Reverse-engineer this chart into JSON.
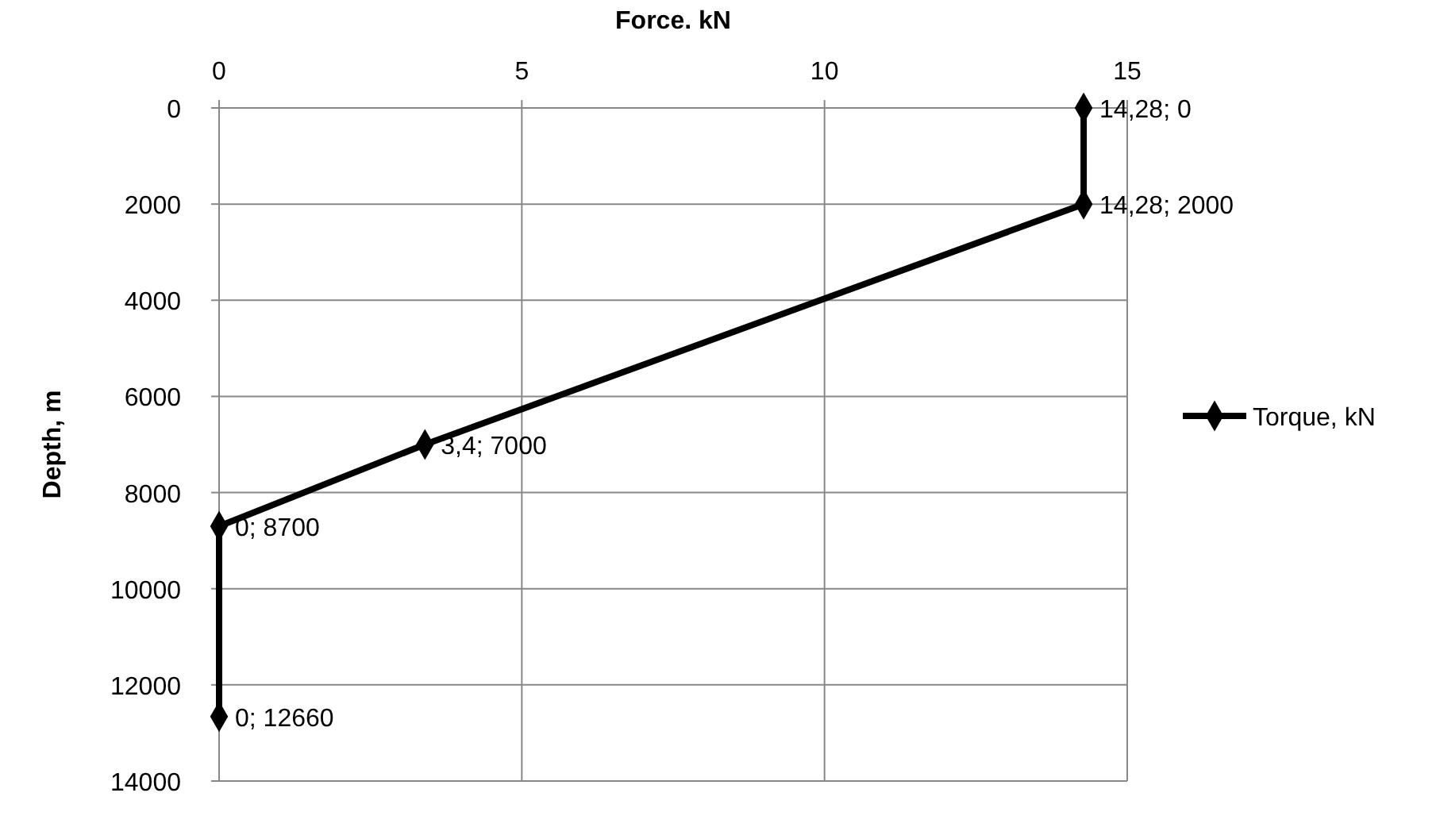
{
  "chart_data": {
    "type": "line",
    "xlabel": "Force. kN",
    "ylabel": "Depth, m",
    "x": [
      14.28,
      14.28,
      3.4,
      0,
      0
    ],
    "series": [
      {
        "name": "Torque, kN",
        "color": "#000000",
        "values": [
          0,
          2000,
          7000,
          8700,
          12660
        ],
        "value_labels": [
          "14,28; 0",
          "14,28; 2000",
          "3,4; 7000",
          "0; 8700",
          "0; 12660"
        ]
      }
    ],
    "xlim": [
      0,
      15
    ],
    "xticks": [
      0,
      5,
      10,
      15
    ],
    "ylim": [
      14000,
      0
    ],
    "yticks": [
      0,
      2000,
      4000,
      6000,
      8000,
      10000,
      12000,
      14000
    ],
    "grid": true,
    "legend": "right",
    "marker": "diamond",
    "line_style": "solid"
  }
}
